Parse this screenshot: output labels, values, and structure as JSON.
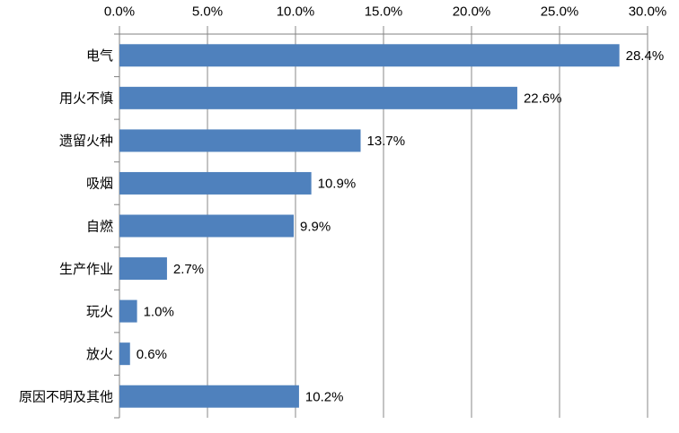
{
  "chart_data": {
    "type": "bar",
    "orientation": "horizontal",
    "title": "",
    "xlabel": "",
    "ylabel": "",
    "categories": [
      "电气",
      "用火不慎",
      "遗留火种",
      "吸烟",
      "自燃",
      "生产作业",
      "玩火",
      "放火",
      "原因不明及其他"
    ],
    "values": [
      28.4,
      22.6,
      13.7,
      10.9,
      9.9,
      2.7,
      1.0,
      0.6,
      10.2
    ],
    "data_labels": [
      "28.4%",
      "22.6%",
      "13.7%",
      "10.9%",
      "9.9%",
      "2.7%",
      "1.0%",
      "0.6%",
      "10.2%"
    ],
    "x_ticks": [
      "0.0%",
      "5.0%",
      "10.0%",
      "15.0%",
      "20.0%",
      "25.0%",
      "30.0%"
    ],
    "x_tick_values": [
      0,
      5,
      10,
      15,
      20,
      25,
      30
    ],
    "xlim": [
      0,
      30
    ],
    "grid": true,
    "axis_position": "top",
    "legend": "none",
    "colors": {
      "bar": "#4F81BD",
      "gridline": "#898989",
      "axis": "#808080",
      "text": "#000000",
      "background": "#FFFFFF"
    }
  }
}
